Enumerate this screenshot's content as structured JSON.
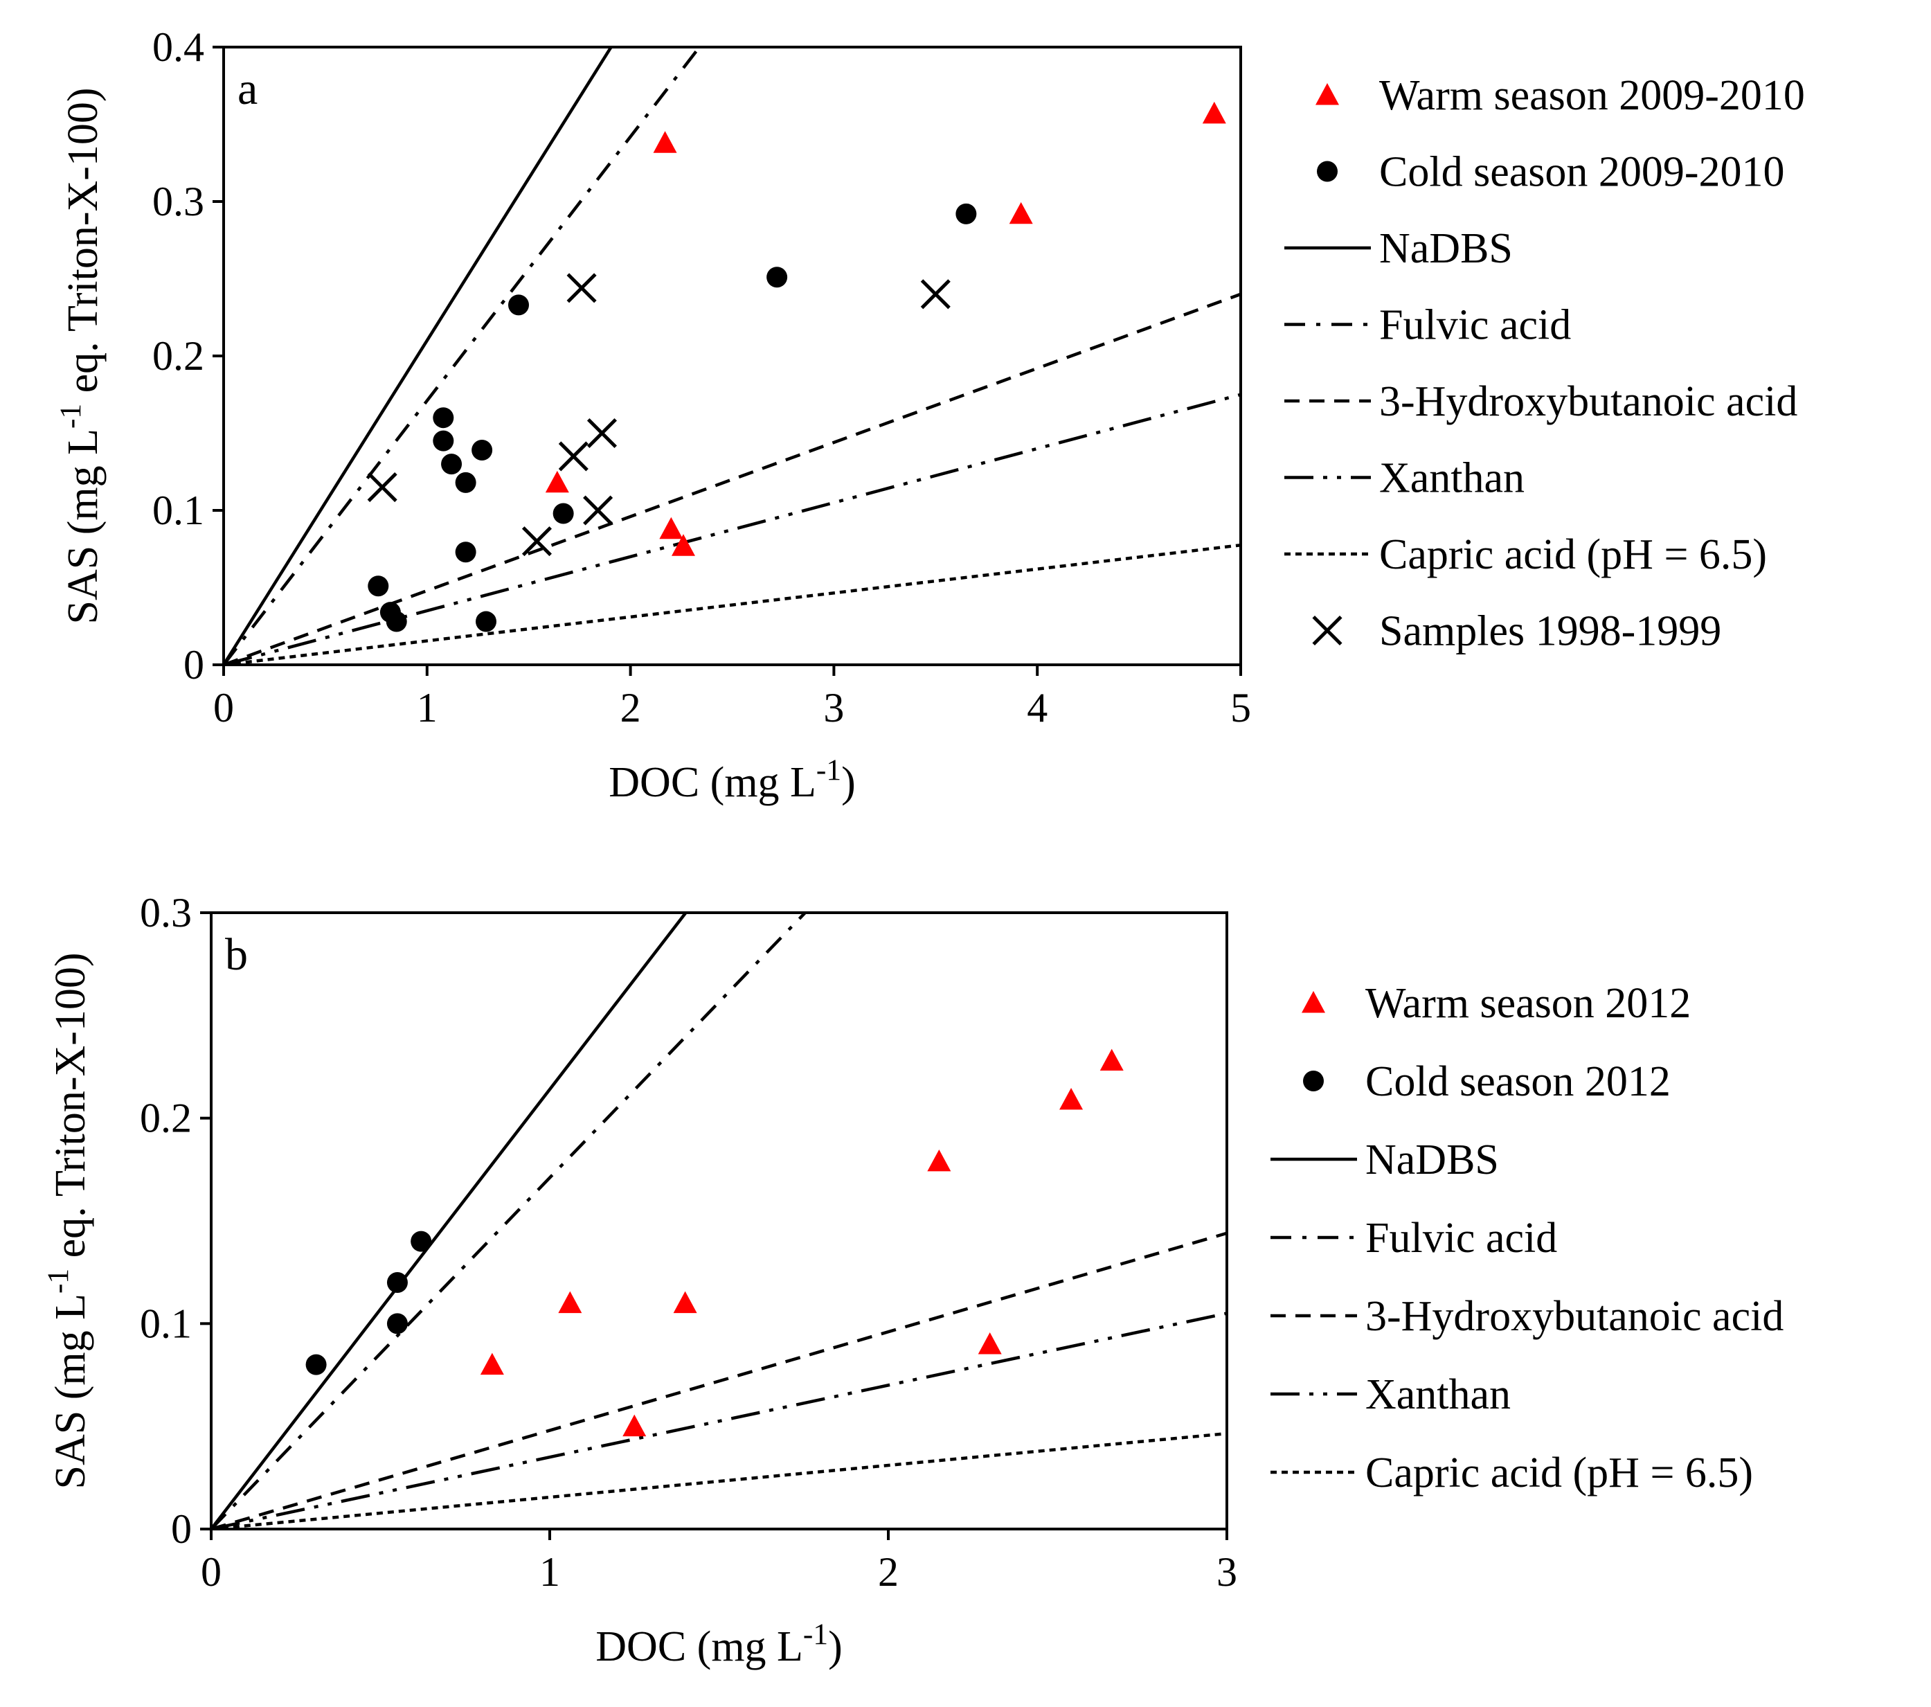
{
  "chart_data": [
    {
      "type": "scatter",
      "panel_label": "a",
      "xlabel": {
        "main": "DOC (mg L",
        "sup": "-1",
        "close": ")"
      },
      "ylabel": {
        "main": "SAS (mg L",
        "sup": "-1",
        "rest": " eq. Triton-X-100)"
      },
      "xlim": [
        0,
        5
      ],
      "ylim": [
        0,
        0.4
      ],
      "xticks": [
        0,
        1,
        2,
        3,
        4,
        5
      ],
      "yticks": [
        0,
        0.1,
        0.2,
        0.3,
        0.4
      ],
      "xtick_labels": [
        "0",
        "1",
        "2",
        "3",
        "4",
        "5"
      ],
      "ytick_labels": [
        "0",
        "0.1",
        "0.2",
        "0.3",
        "0.4"
      ],
      "legend_position": "right",
      "series": [
        {
          "name": "Warm season 2009-2010",
          "kind": "points",
          "marker": "triangle",
          "color": "#ff0000",
          "points": [
            [
              2.17,
              0.338
            ],
            [
              4.87,
              0.357
            ],
            [
              3.92,
              0.292
            ],
            [
              1.64,
              0.118
            ],
            [
              2.2,
              0.088
            ],
            [
              2.26,
              0.077
            ]
          ]
        },
        {
          "name": "Cold season 2009-2010",
          "kind": "points",
          "marker": "circle",
          "color": "#000000",
          "points": [
            [
              3.65,
              0.292
            ],
            [
              2.72,
              0.251
            ],
            [
              1.45,
              0.233
            ],
            [
              1.08,
              0.16
            ],
            [
              1.08,
              0.145
            ],
            [
              1.27,
              0.139
            ],
            [
              1.12,
              0.13
            ],
            [
              1.19,
              0.118
            ],
            [
              1.67,
              0.098
            ],
            [
              1.19,
              0.073
            ],
            [
              0.76,
              0.051
            ],
            [
              0.82,
              0.034
            ],
            [
              0.85,
              0.028
            ],
            [
              1.29,
              0.028
            ]
          ]
        },
        {
          "name": "NaDBS",
          "kind": "line",
          "dash": "solid",
          "slope": 0.21
        },
        {
          "name": "Fulvic acid",
          "kind": "line",
          "dash": "dashdot",
          "slope": 0.171
        },
        {
          "name": "3-Hydroxybutanoic acid",
          "kind": "line",
          "dash": "dashed",
          "slope": 0.048
        },
        {
          "name": "Xanthan",
          "kind": "line",
          "dash": "longdashdot",
          "slope": 0.035
        },
        {
          "name": "Capric acid (pH = 6.5)",
          "kind": "line",
          "dash": "dotted",
          "slope": 0.0155
        },
        {
          "name": "Samples 1998-1999",
          "kind": "points",
          "marker": "cross",
          "color": "#000000",
          "points": [
            [
              1.76,
              0.244
            ],
            [
              3.5,
              0.24
            ],
            [
              1.86,
              0.15
            ],
            [
              1.72,
              0.135
            ],
            [
              0.78,
              0.115
            ],
            [
              1.84,
              0.1
            ],
            [
              1.54,
              0.08
            ]
          ]
        }
      ]
    },
    {
      "type": "scatter",
      "panel_label": "b",
      "xlabel": {
        "main": "DOC (mg L",
        "sup": "-1",
        "close": ")"
      },
      "ylabel": {
        "main": "SAS (mg L",
        "sup": "-1",
        "rest": " eq. Triton-X-100)"
      },
      "xlim": [
        0,
        3
      ],
      "ylim": [
        0,
        0.3
      ],
      "xticks": [
        0,
        1,
        2,
        3
      ],
      "yticks": [
        0,
        0.1,
        0.2,
        0.3
      ],
      "xtick_labels": [
        "0",
        "1",
        "2",
        "3"
      ],
      "ytick_labels": [
        "0",
        "0.1",
        "0.2",
        "0.3"
      ],
      "legend_position": "right",
      "series": [
        {
          "name": "Warm season 2012",
          "kind": "points",
          "marker": "triangle",
          "color": "#ff0000",
          "points": [
            [
              2.66,
              0.228
            ],
            [
              2.54,
              0.209
            ],
            [
              2.15,
              0.179
            ],
            [
              1.06,
              0.11
            ],
            [
              1.4,
              0.11
            ],
            [
              0.83,
              0.08
            ],
            [
              2.3,
              0.09
            ],
            [
              1.25,
              0.05
            ]
          ]
        },
        {
          "name": "Cold season 2012",
          "kind": "points",
          "marker": "circle",
          "color": "#000000",
          "points": [
            [
              0.62,
              0.14
            ],
            [
              0.55,
              0.12
            ],
            [
              0.55,
              0.1
            ],
            [
              0.31,
              0.08
            ]
          ]
        },
        {
          "name": "NaDBS",
          "kind": "line",
          "dash": "solid",
          "slope": 0.214
        },
        {
          "name": "Fulvic acid",
          "kind": "line",
          "dash": "dashdot",
          "slope": 0.171
        },
        {
          "name": "3-Hydroxybutanoic acid",
          "kind": "line",
          "dash": "dashed",
          "slope": 0.048
        },
        {
          "name": "Xanthan",
          "kind": "line",
          "dash": "longdashdot",
          "slope": 0.035
        },
        {
          "name": "Capric acid (pH = 6.5)",
          "kind": "line",
          "dash": "dotted",
          "slope": 0.0155
        }
      ]
    }
  ]
}
